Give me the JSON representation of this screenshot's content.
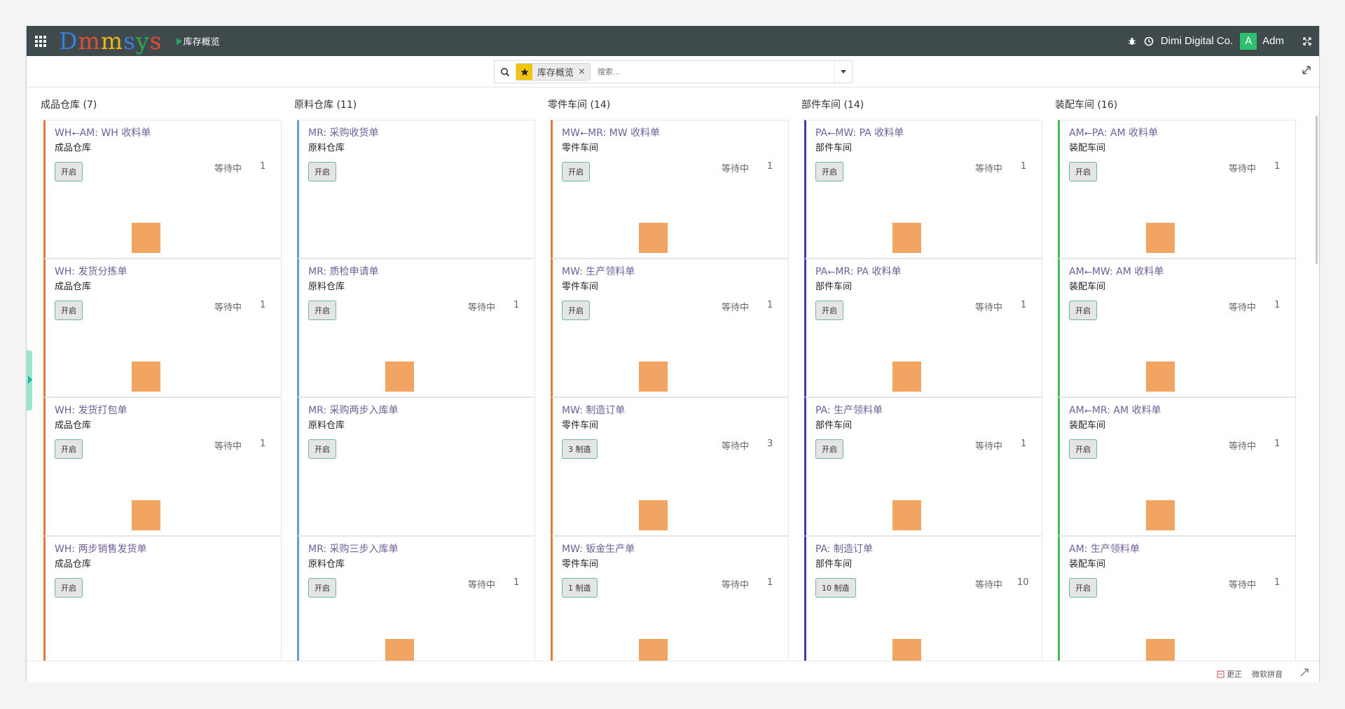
{
  "topbar": {
    "brand_letters": [
      {
        "ch": "D",
        "color": "#3b7de0"
      },
      {
        "ch": "m",
        "color": "#e34b37"
      },
      {
        "ch": "m",
        "color": "#f3b414"
      },
      {
        "ch": "s",
        "color": "#3b7de0"
      },
      {
        "ch": "y",
        "color": "#2ea84f"
      },
      {
        "ch": "s",
        "color": "#e34b37"
      }
    ],
    "breadcrumb": "库存概览",
    "company": "Dimi Digital Co.",
    "avatar_letter": "A",
    "user": "Adm",
    "icons": [
      "apps-grid-icon",
      "bug-icon",
      "clock-icon",
      "expand-icon"
    ]
  },
  "search": {
    "facet_label": "库存概览",
    "facet_remove": "×",
    "placeholder": "搜索..."
  },
  "columns": [
    {
      "title": "成品仓库 (7)",
      "color": "#e07b3a",
      "cards": [
        {
          "title": "WH⭠AM: WH 收料单",
          "warehouse": "成品仓库",
          "button": "开启",
          "waiting_label": "等待中",
          "waiting_count": "1",
          "graph": true
        },
        {
          "title": "WH: 发货分拣单",
          "warehouse": "成品仓库",
          "button": "开启",
          "waiting_label": "等待中",
          "waiting_count": "1",
          "graph": true
        },
        {
          "title": "WH: 发货打包单",
          "warehouse": "成品仓库",
          "button": "开启",
          "waiting_label": "等待中",
          "waiting_count": "1",
          "graph": true
        },
        {
          "title": "WH: 两步销售发货单",
          "warehouse": "成品仓库",
          "button": "开启",
          "waiting_label": "",
          "waiting_count": "",
          "graph": false
        }
      ]
    },
    {
      "title": "原料仓库 (11)",
      "color": "#6b9bc9",
      "cards": [
        {
          "title": "MR: 采购收货单",
          "warehouse": "原料仓库",
          "button": "开启",
          "waiting_label": "",
          "waiting_count": "",
          "graph": false
        },
        {
          "title": "MR: 质检申请单",
          "warehouse": "原料仓库",
          "button": "开启",
          "waiting_label": "等待中",
          "waiting_count": "1",
          "graph": true
        },
        {
          "title": "MR: 采购两步入库单",
          "warehouse": "原料仓库",
          "button": "开启",
          "waiting_label": "",
          "waiting_count": "",
          "graph": false
        },
        {
          "title": "MR: 采购三步入库单",
          "warehouse": "原料仓库",
          "button": "开启",
          "waiting_label": "等待中",
          "waiting_count": "1",
          "graph": true
        }
      ]
    },
    {
      "title": "零件车间 (14)",
      "color": "#e07b3a",
      "cards": [
        {
          "title": "MW⭠MR: MW 收料单",
          "warehouse": "零件车间",
          "button": "开启",
          "waiting_label": "等待中",
          "waiting_count": "1",
          "graph": true
        },
        {
          "title": "MW: 生产领料单",
          "warehouse": "零件车间",
          "button": "开启",
          "waiting_label": "等待中",
          "waiting_count": "1",
          "graph": true
        },
        {
          "title": "MW: 制造订单",
          "warehouse": "零件车间",
          "button": "3 制造",
          "waiting_label": "等待中",
          "waiting_count": "3",
          "graph": true
        },
        {
          "title": "MW: 钣金生产单",
          "warehouse": "零件车间",
          "button": "1 制造",
          "waiting_label": "等待中",
          "waiting_count": "1",
          "graph": true
        }
      ]
    },
    {
      "title": "部件车间 (14)",
      "color": "#3b3fa6",
      "cards": [
        {
          "title": "PA⭠MW: PA 收料单",
          "warehouse": "部件车间",
          "button": "开启",
          "waiting_label": "等待中",
          "waiting_count": "1",
          "graph": true
        },
        {
          "title": "PA⭠MR: PA 收料单",
          "warehouse": "部件车间",
          "button": "开启",
          "waiting_label": "等待中",
          "waiting_count": "1",
          "graph": true
        },
        {
          "title": "PA: 生产领料单",
          "warehouse": "部件车间",
          "button": "开启",
          "waiting_label": "等待中",
          "waiting_count": "1",
          "graph": true
        },
        {
          "title": "PA: 制造订单",
          "warehouse": "部件车间",
          "button": "10 制造",
          "waiting_label": "等待中",
          "waiting_count": "10",
          "graph": true
        }
      ]
    },
    {
      "title": "装配车间 (16)",
      "color": "#43b85c",
      "cards": [
        {
          "title": "AM⭠PA: AM 收料单",
          "warehouse": "装配车间",
          "button": "开启",
          "waiting_label": "等待中",
          "waiting_count": "1",
          "graph": true
        },
        {
          "title": "AM⭠MW: AM 收料单",
          "warehouse": "装配车间",
          "button": "开启",
          "waiting_label": "等待中",
          "waiting_count": "1",
          "graph": true
        },
        {
          "title": "AM⭠MR: AM 收料单",
          "warehouse": "装配车间",
          "button": "开启",
          "waiting_label": "等待中",
          "waiting_count": "1",
          "graph": true
        },
        {
          "title": "AM: 生产领料单",
          "warehouse": "装配车间",
          "button": "开启",
          "waiting_label": "等待中",
          "waiting_count": "1",
          "graph": true
        }
      ]
    }
  ],
  "statusbar": {
    "correct_label": "更正",
    "ime_label": "微软拼音"
  }
}
